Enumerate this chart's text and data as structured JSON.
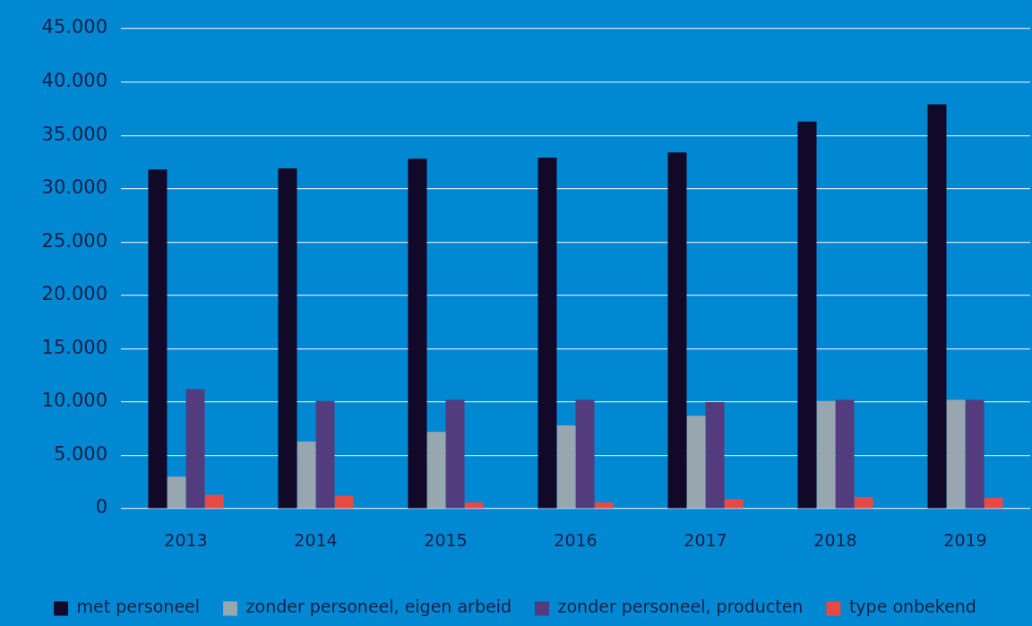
{
  "chart_data": {
    "type": "bar",
    "categories": [
      "2013",
      "2014",
      "2015",
      "2016",
      "2017",
      "2018",
      "2019"
    ],
    "series": [
      {
        "name": "met personeel",
        "color": "#120828",
        "values": [
          31800,
          31900,
          32800,
          32900,
          33400,
          36300,
          37900
        ]
      },
      {
        "name": "zonder personeel, eigen arbeid",
        "color": "#97a6af",
        "values": [
          3000,
          6300,
          7200,
          7800,
          8700,
          10100,
          10200
        ]
      },
      {
        "name": "zonder personeel, producten",
        "color": "#523c7e",
        "values": [
          11200,
          10100,
          10200,
          10200,
          10000,
          10200,
          10200
        ]
      },
      {
        "name": "type onbekend",
        "color": "#e84a43",
        "values": [
          1300,
          1200,
          600,
          600,
          900,
          1100,
          1000
        ]
      }
    ],
    "ylim": [
      0,
      45000
    ],
    "yticks": [
      0,
      {
        "value": 5000,
        "label": "5.000"
      },
      {
        "value": 10000,
        "label": "10.000"
      },
      {
        "value": 15000,
        "label": "15.000"
      },
      {
        "value": 20000,
        "label": "20.000"
      },
      {
        "value": 25000,
        "label": "25.000"
      },
      {
        "value": 30000,
        "label": "30.000"
      },
      {
        "value": 35000,
        "label": "35.000"
      },
      {
        "value": 40000,
        "label": "40.000"
      },
      {
        "value": 45000,
        "label": "45.000"
      }
    ],
    "grid": "y",
    "legend": "bottom"
  }
}
